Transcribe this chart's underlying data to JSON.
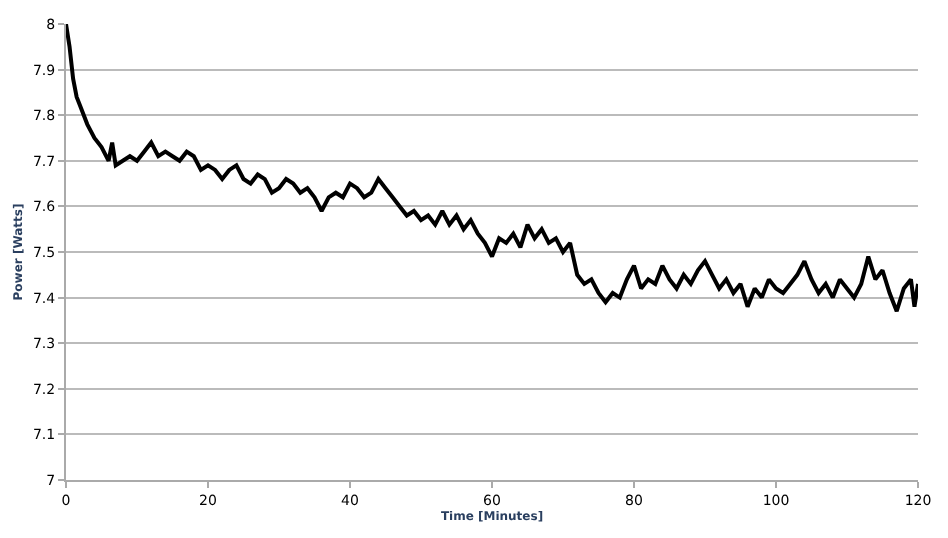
{
  "chart_data": {
    "type": "line",
    "xlabel": "Time [Minutes]",
    "ylabel": "Power [Watts]",
    "x": [
      0,
      0.5,
      1,
      1.5,
      2,
      3,
      4,
      5,
      6,
      6.5,
      7,
      8,
      9,
      10,
      11,
      12,
      13,
      14,
      15,
      16,
      17,
      18,
      19,
      20,
      21,
      22,
      23,
      24,
      25,
      26,
      27,
      28,
      29,
      30,
      31,
      32,
      33,
      34,
      35,
      36,
      37,
      38,
      39,
      40,
      41,
      42,
      43,
      44,
      45,
      46,
      47,
      48,
      49,
      50,
      51,
      52,
      53,
      54,
      55,
      56,
      57,
      58,
      59,
      60,
      61,
      62,
      63,
      64,
      65,
      66,
      67,
      68,
      69,
      70,
      71,
      72,
      73,
      74,
      75,
      76,
      77,
      78,
      79,
      80,
      81,
      82,
      83,
      84,
      85,
      86,
      87,
      88,
      89,
      90,
      91,
      92,
      93,
      94,
      95,
      96,
      97,
      98,
      99,
      100,
      101,
      102,
      103,
      104,
      105,
      106,
      107,
      108,
      109,
      110,
      111,
      112,
      113,
      114,
      115,
      116,
      117,
      118,
      119,
      119.5,
      120
    ],
    "series": [
      {
        "color": "#000000",
        "values": [
          8.0,
          7.95,
          7.88,
          7.84,
          7.82,
          7.78,
          7.75,
          7.73,
          7.7,
          7.74,
          7.69,
          7.7,
          7.71,
          7.7,
          7.72,
          7.74,
          7.71,
          7.72,
          7.71,
          7.7,
          7.72,
          7.71,
          7.68,
          7.69,
          7.68,
          7.66,
          7.68,
          7.69,
          7.66,
          7.65,
          7.67,
          7.66,
          7.63,
          7.64,
          7.66,
          7.65,
          7.63,
          7.64,
          7.62,
          7.59,
          7.62,
          7.63,
          7.62,
          7.65,
          7.64,
          7.62,
          7.63,
          7.66,
          7.64,
          7.62,
          7.6,
          7.58,
          7.59,
          7.57,
          7.58,
          7.56,
          7.59,
          7.56,
          7.58,
          7.55,
          7.57,
          7.54,
          7.52,
          7.49,
          7.53,
          7.52,
          7.54,
          7.51,
          7.56,
          7.53,
          7.55,
          7.52,
          7.53,
          7.5,
          7.52,
          7.45,
          7.43,
          7.44,
          7.41,
          7.39,
          7.41,
          7.4,
          7.44,
          7.47,
          7.42,
          7.44,
          7.43,
          7.47,
          7.44,
          7.42,
          7.45,
          7.43,
          7.46,
          7.48,
          7.45,
          7.42,
          7.44,
          7.41,
          7.43,
          7.38,
          7.42,
          7.4,
          7.44,
          7.42,
          7.41,
          7.43,
          7.45,
          7.48,
          7.44,
          7.41,
          7.43,
          7.4,
          7.44,
          7.42,
          7.4,
          7.43,
          7.49,
          7.44,
          7.46,
          7.41,
          7.37,
          7.42,
          7.44,
          7.38,
          7.43
        ]
      }
    ],
    "xlim": [
      0,
      120
    ],
    "xticks": [
      0,
      20,
      40,
      60,
      80,
      100,
      120
    ],
    "ylim": [
      7,
      8
    ],
    "yticks": [
      7,
      7.1,
      7.2,
      7.3,
      7.4,
      7.5,
      7.6,
      7.7,
      7.8,
      7.9,
      8
    ],
    "grid": "y",
    "legend": false,
    "marker": "none",
    "line_style": "solid"
  }
}
